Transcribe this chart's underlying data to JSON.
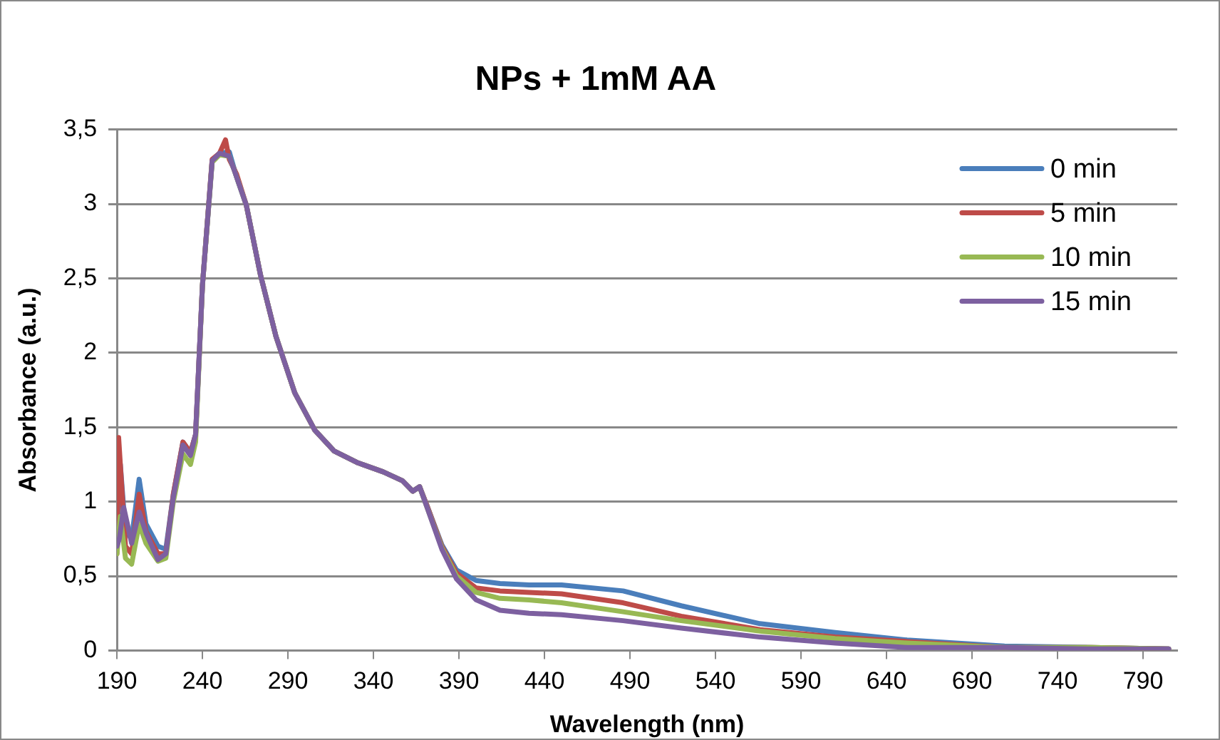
{
  "chart_data": {
    "type": "line",
    "title": "NPs + 1mM AA",
    "xlabel": "Wavelength (nm)",
    "ylabel": "Absorbance (a.u.)",
    "xlim": [
      190,
      810
    ],
    "xticks": [
      190,
      240,
      290,
      340,
      390,
      440,
      490,
      540,
      590,
      640,
      690,
      740,
      790
    ],
    "ylim": [
      0,
      3.5
    ],
    "yticks": [
      0,
      {
        "value": 0.5,
        "label": "0,5"
      },
      1,
      {
        "value": 1.5,
        "label": "1,5"
      },
      2,
      {
        "value": 2.5,
        "label": "2,5"
      },
      3,
      {
        "value": 3.5,
        "label": "3,5"
      }
    ],
    "grid": "y",
    "legend": "top right",
    "marker": "none",
    "line_style": "solid",
    "series": [
      {
        "name": "0 min",
        "color": "#4a7ebb",
        "x": [
          190,
          192,
          195,
          198.6,
          203,
          207,
          214,
          218.6,
          223,
          228.6,
          233,
          236,
          240,
          245.7,
          250,
          255.7,
          260,
          265.7,
          274,
          283,
          294,
          305.7,
          317,
          331,
          345.7,
          357,
          363,
          367,
          371.4,
          380,
          388.6,
          400,
          414,
          431,
          450,
          486,
          520,
          566,
          610,
          652,
          709,
          760,
          805
        ],
        "values": [
          0.7,
          1.25,
          0.8,
          0.75,
          1.15,
          0.85,
          0.7,
          0.68,
          1.05,
          1.4,
          1.33,
          1.45,
          2.45,
          3.29,
          3.34,
          3.35,
          3.18,
          2.99,
          2.52,
          2.11,
          1.73,
          1.48,
          1.34,
          1.26,
          1.2,
          1.14,
          1.07,
          1.1,
          0.97,
          0.71,
          0.54,
          0.47,
          0.45,
          0.44,
          0.44,
          0.4,
          0.3,
          0.18,
          0.12,
          0.07,
          0.03,
          0.02,
          0.01
        ]
      },
      {
        "name": "5 min",
        "color": "#be4b48",
        "x": [
          190,
          191,
          195,
          198.6,
          203,
          207,
          214,
          218.6,
          223,
          228.6,
          233,
          236,
          240,
          245.7,
          250,
          253.5,
          255.7,
          260,
          265.7,
          274,
          283,
          294,
          305.7,
          317,
          331,
          345.7,
          357,
          363,
          367,
          371.4,
          380,
          388.6,
          400,
          414,
          431,
          450,
          486,
          520,
          566,
          610,
          652,
          709,
          760,
          805
        ],
        "values": [
          0.65,
          1.43,
          0.7,
          0.65,
          1.05,
          0.8,
          0.65,
          0.65,
          1.05,
          1.4,
          1.33,
          1.45,
          2.45,
          3.3,
          3.34,
          3.43,
          3.3,
          3.2,
          2.99,
          2.52,
          2.11,
          1.73,
          1.48,
          1.34,
          1.26,
          1.2,
          1.14,
          1.07,
          1.1,
          0.97,
          0.7,
          0.52,
          0.42,
          0.4,
          0.39,
          0.38,
          0.32,
          0.23,
          0.14,
          0.09,
          0.06,
          0.02,
          0.02,
          0.01
        ]
      },
      {
        "name": "10 min",
        "color": "#98b954",
        "x": [
          190,
          192,
          195,
          198.6,
          203,
          207,
          214,
          218.6,
          223,
          228.6,
          233,
          236,
          240,
          245.7,
          250,
          255.7,
          260,
          265.7,
          274,
          283,
          294,
          305.7,
          317,
          331,
          345.7,
          357,
          363,
          367,
          371.4,
          380,
          388.6,
          400,
          414,
          431,
          450,
          486,
          520,
          566,
          610,
          652,
          709,
          760,
          805
        ],
        "values": [
          0.65,
          0.9,
          0.62,
          0.58,
          0.85,
          0.72,
          0.6,
          0.62,
          1,
          1.32,
          1.25,
          1.4,
          2.45,
          3.28,
          3.33,
          3.32,
          3.18,
          2.99,
          2.52,
          2.11,
          1.73,
          1.48,
          1.34,
          1.26,
          1.2,
          1.14,
          1.07,
          1.1,
          0.96,
          0.69,
          0.5,
          0.39,
          0.35,
          0.34,
          0.32,
          0.26,
          0.2,
          0.13,
          0.08,
          0.05,
          0.02,
          0.02,
          0.01
        ]
      },
      {
        "name": "15 min",
        "color": "#7d60a0",
        "x": [
          190,
          191.4,
          194,
          198.6,
          203,
          207,
          214,
          218.6,
          223,
          228.6,
          233,
          236,
          240,
          245.7,
          250,
          255.7,
          260,
          265.7,
          274,
          283,
          294,
          305.7,
          317,
          331,
          345.7,
          357,
          363,
          367,
          371.4,
          380,
          388.6,
          400,
          414,
          431,
          450,
          486,
          520,
          566,
          610,
          652,
          709,
          760,
          805
        ],
        "values": [
          0.7,
          0.75,
          0.96,
          0.72,
          0.93,
          0.79,
          0.61,
          0.65,
          1.03,
          1.38,
          1.31,
          1.45,
          2.45,
          3.29,
          3.34,
          3.32,
          3.18,
          2.99,
          2.52,
          2.11,
          1.73,
          1.48,
          1.34,
          1.26,
          1.2,
          1.14,
          1.07,
          1.1,
          0.96,
          0.68,
          0.48,
          0.34,
          0.27,
          0.25,
          0.24,
          0.2,
          0.15,
          0.09,
          0.05,
          0.02,
          0.02,
          0.01,
          0.01
        ]
      }
    ]
  }
}
